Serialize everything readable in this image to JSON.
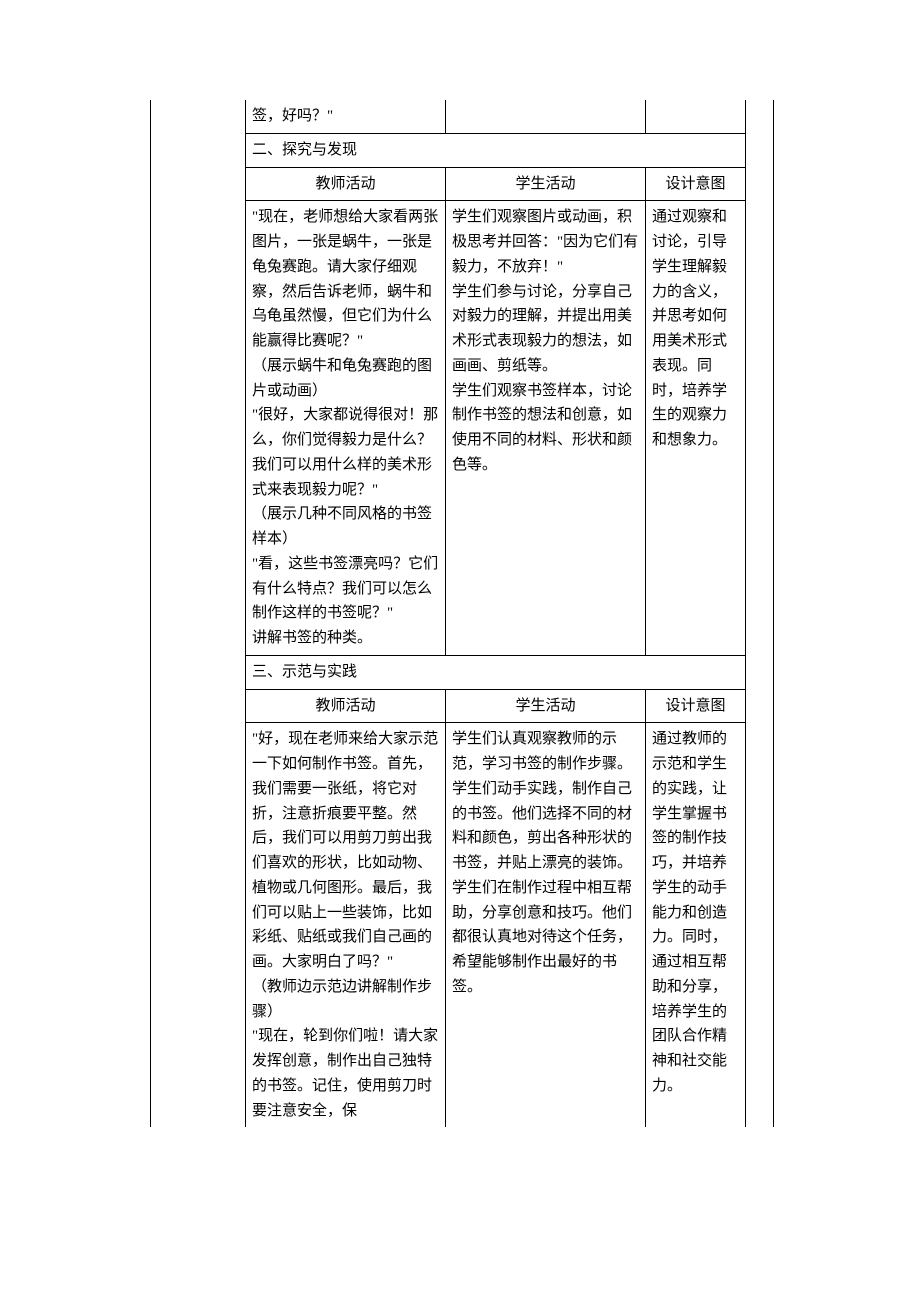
{
  "row_prev_trailing": "签，好吗？\"",
  "section2": {
    "title": "二、探究与发现",
    "headers": {
      "teacher": "教师活动",
      "student": "学生活动",
      "intent": "设计意图"
    },
    "teacher": "\"现在，老师想给大家看两张图片，一张是蜗牛，一张是龟兔赛跑。请大家仔细观察，然后告诉老师，蜗牛和乌龟虽然慢，但它们为什么能赢得比赛呢？\"\n（展示蜗牛和龟兔赛跑的图片或动画）\n\"很好，大家都说得很对！那么，你们觉得毅力是什么？我们可以用什么样的美术形式来表现毅力呢？\"\n（展示几种不同风格的书签样本）\n\"看，这些书签漂亮吗？它们有什么特点？我们可以怎么制作这样的书签呢？\"\n讲解书签的种类。",
    "student": "学生们观察图片或动画，积极思考并回答：\"因为它们有毅力，不放弃！\"\n学生们参与讨论，分享自己对毅力的理解，并提出用美术形式表现毅力的想法，如画画、剪纸等。\n学生们观察书签样本，讨论制作书签的想法和创意，如使用不同的材料、形状和颜色等。",
    "intent": "通过观察和讨论，引导学生理解毅力的含义，并思考如何用美术形式表现。同时，培养学生的观察力和想象力。"
  },
  "section3": {
    "title": "三、示范与实践",
    "headers": {
      "teacher": "教师活动",
      "student": "学生活动",
      "intent": "设计意图"
    },
    "teacher": "\"好，现在老师来给大家示范一下如何制作书签。首先，我们需要一张纸，将它对折，注意折痕要平整。然后，我们可以用剪刀剪出我们喜欢的形状，比如动物、植物或几何图形。最后，我们可以贴上一些装饰，比如彩纸、贴纸或我们自己画的画。大家明白了吗？\"\n（教师边示范边讲解制作步骤）\n\"现在，轮到你们啦！请大家发挥创意，制作出自己独特的书签。记住，使用剪刀时要注意安全，保",
    "student": "学生们认真观察教师的示范，学习书签的制作步骤。\n学生们动手实践，制作自己的书签。他们选择不同的材料和颜色，剪出各种形状的书签，并贴上漂亮的装饰。\n学生们在制作过程中相互帮助，分享创意和技巧。他们都很认真地对待这个任务，希望能够制作出最好的书签。",
    "intent": "通过教师的示范和学生的实践，让学生掌握书签的制作技巧，并培养学生的动手能力和创造力。同时，通过相互帮助和分享，培养学生的团队合作精神和社交能力。"
  }
}
